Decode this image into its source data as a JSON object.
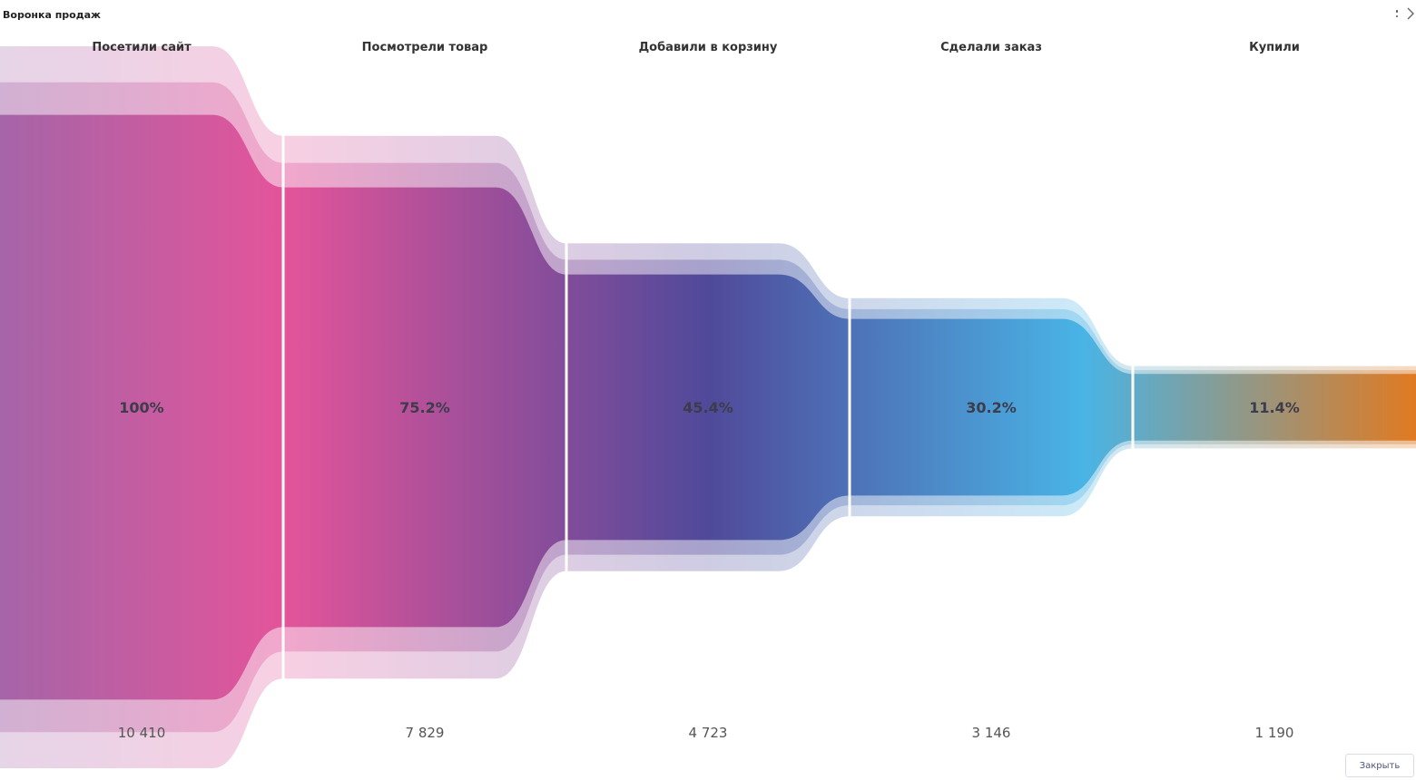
{
  "header": {
    "title": "Воронка продаж"
  },
  "footer": {
    "close_label": "Закрыть"
  },
  "colors": [
    "#A565A8",
    "#E4549A",
    "#50499A",
    "#49B4E6",
    "#E07A22"
  ],
  "chart_data": {
    "type": "funnel",
    "title": "Воронка продаж",
    "stages": [
      {
        "label": "Посетили сайт",
        "percent": 100,
        "percent_label": "100%",
        "count": 10410,
        "count_label": "10 410"
      },
      {
        "label": "Посмотрели товар",
        "percent": 75.2,
        "percent_label": "75.2%",
        "count": 7829,
        "count_label": "7 829"
      },
      {
        "label": "Добавили в корзину",
        "percent": 45.4,
        "percent_label": "45.4%",
        "count": 4723,
        "count_label": "4 723"
      },
      {
        "label": "Сделали заказ",
        "percent": 30.2,
        "percent_label": "30.2%",
        "count": 3146,
        "count_label": "3 146"
      },
      {
        "label": "Купили",
        "percent": 11.4,
        "percent_label": "11.4%",
        "count": 1190,
        "count_label": "1 190"
      }
    ]
  }
}
